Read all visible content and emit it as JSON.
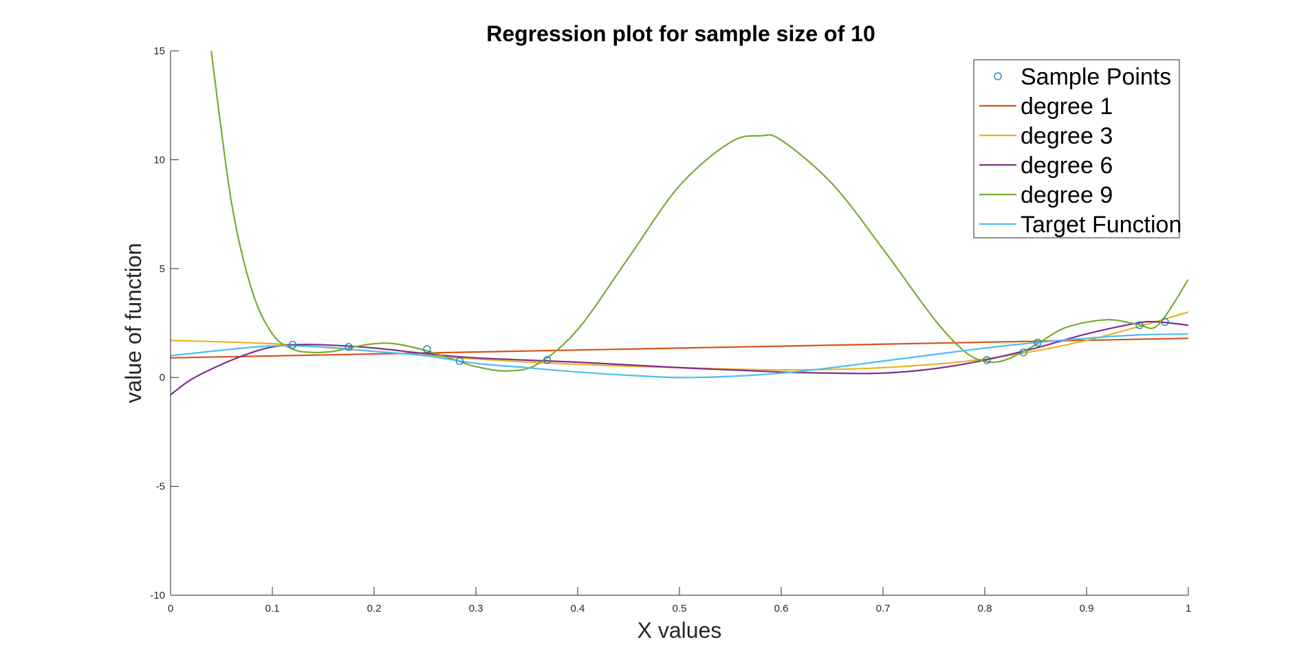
{
  "chart_data": {
    "type": "line",
    "title": "Regression plot for sample size of 10",
    "xlabel": "X values",
    "ylabel": "value of function",
    "xlim": [
      0,
      1
    ],
    "ylim": [
      -10,
      15
    ],
    "xticks": [
      "0",
      "0.1",
      "0.2",
      "0.3",
      "0.4",
      "0.5",
      "0.6",
      "0.7",
      "0.8",
      "0.9",
      "1"
    ],
    "yticks": [
      "-10",
      "-5",
      "0",
      "5",
      "10",
      "15"
    ],
    "legend_position": "top-right",
    "sample_points": {
      "name": "Sample Points",
      "color": "#0072BD",
      "x": [
        0.12,
        0.175,
        0.252,
        0.284,
        0.37,
        0.802,
        0.838,
        0.852,
        0.952,
        0.977
      ],
      "y": [
        1.5,
        1.4,
        1.3,
        0.75,
        0.8,
        0.8,
        1.15,
        1.6,
        2.4,
        2.55
      ]
    },
    "series": [
      {
        "name": "degree 1",
        "color": "#D95319",
        "x": [
          0,
          1
        ],
        "y": [
          0.9,
          1.8
        ]
      },
      {
        "name": "degree 3",
        "color": "#EDB120",
        "x": [
          0,
          0.1,
          0.2,
          0.3,
          0.4,
          0.5,
          0.6,
          0.7,
          0.8,
          0.9,
          1
        ],
        "y": [
          1.7,
          1.55,
          1.2,
          0.85,
          0.6,
          0.45,
          0.35,
          0.45,
          0.85,
          1.7,
          3.0
        ]
      },
      {
        "name": "degree 6",
        "color": "#7E2F8E",
        "x": [
          0,
          0.02,
          0.05,
          0.08,
          0.1,
          0.12,
          0.15,
          0.2,
          0.25,
          0.3,
          0.4,
          0.5,
          0.55,
          0.6,
          0.65,
          0.7,
          0.75,
          0.8,
          0.85,
          0.9,
          0.95,
          0.97,
          1
        ],
        "y": [
          -0.8,
          -0.1,
          0.6,
          1.15,
          1.4,
          1.5,
          1.5,
          1.35,
          1.1,
          0.9,
          0.7,
          0.45,
          0.35,
          0.25,
          0.2,
          0.2,
          0.4,
          0.8,
          1.35,
          2.0,
          2.5,
          2.55,
          2.4
        ]
      },
      {
        "name": "degree 9",
        "color": "#77AC30",
        "x": [
          0.04,
          0.06,
          0.08,
          0.1,
          0.12,
          0.14,
          0.16,
          0.18,
          0.2,
          0.22,
          0.25,
          0.28,
          0.3,
          0.33,
          0.36,
          0.4,
          0.45,
          0.5,
          0.55,
          0.58,
          0.6,
          0.65,
          0.7,
          0.75,
          0.78,
          0.8,
          0.82,
          0.85,
          0.88,
          0.92,
          0.95,
          0.97,
          1.0
        ],
        "y": [
          15,
          8.0,
          4.0,
          2.0,
          1.3,
          1.15,
          1.2,
          1.4,
          1.55,
          1.55,
          1.25,
          0.8,
          0.5,
          0.3,
          0.6,
          2.2,
          5.5,
          8.8,
          10.8,
          11.1,
          10.9,
          8.9,
          5.9,
          2.7,
          1.2,
          0.75,
          0.8,
          1.5,
          2.3,
          2.65,
          2.45,
          2.4,
          4.5
        ]
      },
      {
        "name": "Target Function",
        "color": "#4DBEEE",
        "x": [
          0,
          0.05,
          0.1,
          0.15,
          0.2,
          0.25,
          0.3,
          0.35,
          0.4,
          0.45,
          0.5,
          0.55,
          0.6,
          0.65,
          0.7,
          0.75,
          0.8,
          0.85,
          0.9,
          0.95,
          1
        ],
        "y": [
          1.0,
          1.25,
          1.45,
          1.4,
          1.2,
          1.0,
          0.65,
          0.45,
          0.25,
          0.1,
          0.0,
          0.05,
          0.2,
          0.45,
          0.75,
          1.05,
          1.35,
          1.6,
          1.8,
          1.95,
          2.0
        ]
      }
    ]
  }
}
